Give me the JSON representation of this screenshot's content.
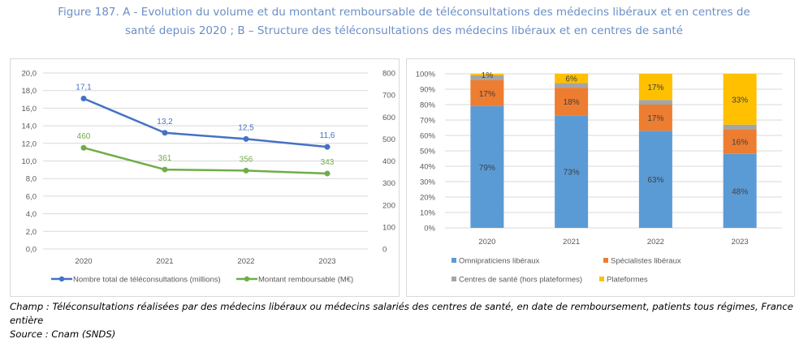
{
  "figure": {
    "title_line1": "Figure 187. A - Evolution du volume et du montant remboursable de téléconsultations des médecins libéraux et en centres de",
    "title_line2": "santé depuis 2020 ; B – Structure des téléconsultations des médecins libéraux et en centres de santé",
    "note_champ": "Champ : Téléconsultations réalisées par des médecins libéraux ou médecins salariés des centres de santé, en date de remboursement, patients tous régimes, France entière",
    "note_source": "Source : Cnam (SNDS)"
  },
  "chart_data": [
    {
      "type": "line",
      "panel": "A",
      "title": "",
      "categories": [
        "2020",
        "2021",
        "2022",
        "2023"
      ],
      "y_left": {
        "min": 0,
        "max": 20,
        "step": 2,
        "tick_labels": [
          "0,0",
          "2,0",
          "4,0",
          "6,0",
          "8,0",
          "10,0",
          "12,0",
          "14,0",
          "16,0",
          "18,0",
          "20,0"
        ]
      },
      "y_right": {
        "min": 0,
        "max": 800,
        "step": 100,
        "tick_labels": [
          "0",
          "100",
          "200",
          "300",
          "400",
          "500",
          "600",
          "700",
          "800"
        ]
      },
      "grid": true,
      "legend_position": "bottom",
      "series": [
        {
          "name": "Nombre total de téléconsultations (millions)",
          "axis": "left",
          "color": "#4472c4",
          "values": [
            17.1,
            13.2,
            12.5,
            11.6
          ],
          "labels": [
            "17,1",
            "13,2",
            "12,5",
            "11,6"
          ]
        },
        {
          "name": "Montant remboursable (M€)",
          "axis": "right",
          "color": "#70ad47",
          "values": [
            460,
            361,
            356,
            343
          ],
          "labels": [
            "460",
            "361",
            "356",
            "343"
          ]
        }
      ]
    },
    {
      "type": "bar",
      "stacked": true,
      "panel": "B",
      "title": "",
      "categories": [
        "2020",
        "2021",
        "2022",
        "2023"
      ],
      "ylim": [
        0,
        100
      ],
      "y_tick_labels": [
        "0%",
        "10%",
        "20%",
        "30%",
        "40%",
        "50%",
        "60%",
        "70%",
        "80%",
        "90%",
        "100%"
      ],
      "grid": true,
      "legend_position": "bottom",
      "series": [
        {
          "name": "Omnipraticiens libéraux",
          "color": "#5b9bd5",
          "values": [
            79,
            73,
            63,
            48
          ],
          "labels": [
            "79%",
            "73%",
            "63%",
            "48%"
          ]
        },
        {
          "name": "Spécialistes libéraux",
          "color": "#ed7d31",
          "values": [
            17,
            18,
            17,
            16
          ],
          "labels": [
            "17%",
            "18%",
            "17%",
            "16%"
          ]
        },
        {
          "name": "Centres de santé (hors plateformes)",
          "color": "#a5a5a5",
          "values": [
            3,
            3,
            3,
            3
          ],
          "labels": [
            "",
            "",
            "",
            ""
          ]
        },
        {
          "name": "Plateformes",
          "color": "#ffc000",
          "values": [
            1,
            6,
            17,
            33
          ],
          "labels": [
            "1%",
            "6%",
            "17%",
            "33%"
          ]
        }
      ]
    }
  ]
}
